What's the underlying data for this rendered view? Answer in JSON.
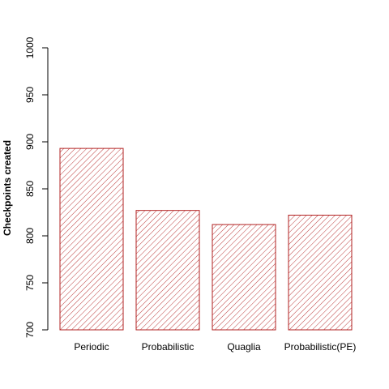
{
  "chart_data": {
    "type": "bar",
    "categories": [
      "Periodic",
      "Probabilistic",
      "Quaglia",
      "Probabilistic(PE)"
    ],
    "values": [
      893,
      827,
      812,
      822
    ],
    "title": "",
    "xlabel": "",
    "ylabel": "Checkpoints created",
    "ylim": [
      700,
      1000
    ],
    "yticks": [
      "700",
      "750",
      "800",
      "850",
      "900",
      "950",
      "1000"
    ],
    "grid": false,
    "bar_color": "#b22222",
    "fill_pattern": "diagonal-hatch"
  }
}
